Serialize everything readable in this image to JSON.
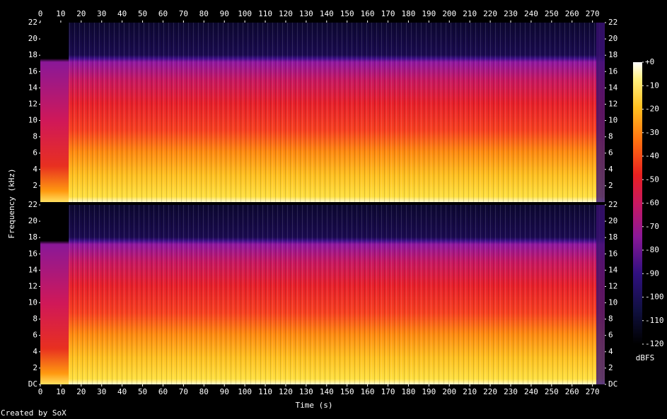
{
  "chart_data": {
    "type": "spectrogram",
    "xlabel": "Time (s)",
    "ylabel": "Frequency (kHz)",
    "xlim": [
      0,
      276
    ],
    "xticks": [
      0,
      10,
      20,
      30,
      40,
      50,
      60,
      70,
      80,
      90,
      100,
      110,
      120,
      130,
      140,
      150,
      160,
      170,
      180,
      190,
      200,
      210,
      220,
      230,
      240,
      250,
      260,
      270
    ],
    "panels": [
      {
        "ylim": [
          0,
          22
        ],
        "yticks": [
          2,
          4,
          6,
          8,
          10,
          12,
          14,
          16,
          18,
          20,
          22
        ]
      },
      {
        "ylim": [
          0,
          22
        ],
        "yticks": [
          {
            "value": 0,
            "label": "DC"
          },
          2,
          4,
          6,
          8,
          10,
          12,
          14,
          16,
          18,
          20,
          22
        ]
      }
    ],
    "colorbar": {
      "label": "dBFS",
      "lim": [
        -120,
        0
      ],
      "ticks": [
        {
          "value": 0,
          "label": "+0"
        },
        -10,
        -20,
        -30,
        -40,
        -50,
        -60,
        -70,
        -80,
        -90,
        -100,
        -110,
        -120
      ]
    },
    "credit": "Created by SoX"
  }
}
